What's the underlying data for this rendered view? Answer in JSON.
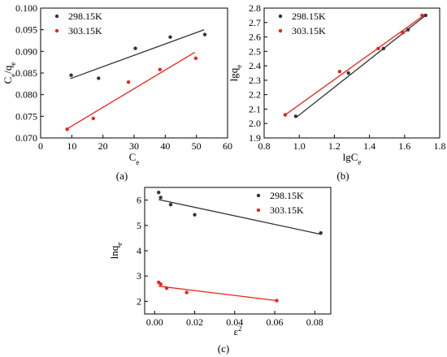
{
  "figure": {
    "captions": [
      "(a)",
      "(b)",
      "(c)"
    ]
  },
  "chart_data": [
    {
      "type": "scatter",
      "panel": "(a)",
      "xlabel": "Ce",
      "ylabel": "Ce/qe",
      "xlim": [
        0,
        60
      ],
      "ylim": [
        0.07,
        0.1
      ],
      "xticks": [
        "0",
        "10",
        "20",
        "30",
        "40",
        "50",
        "60"
      ],
      "yticks": [
        "0.070",
        "0.075",
        "0.080",
        "0.085",
        "0.090",
        "0.095",
        "0.100"
      ],
      "legend_position": "top-left",
      "series": [
        {
          "name": "298.15K",
          "color": "#333333",
          "x": [
            9.8,
            18.6,
            30.4,
            41.6,
            52.7
          ],
          "y": [
            0.0845,
            0.0838,
            0.0907,
            0.0933,
            0.0939
          ],
          "fit": [
            [
              9.5,
              0.0837
            ],
            [
              52.5,
              0.095
            ]
          ]
        },
        {
          "name": "303.15K",
          "color": "#e8231b",
          "x": [
            8.5,
            16.9,
            28.2,
            38.3,
            49.8
          ],
          "y": [
            0.072,
            0.0745,
            0.0829,
            0.0858,
            0.0884
          ],
          "fit": [
            [
              8.5,
              0.0721
            ],
            [
              49.5,
              0.0898
            ]
          ]
        }
      ]
    },
    {
      "type": "scatter",
      "panel": "(b)",
      "xlabel": "lgCe",
      "ylabel": "lgqe",
      "xlim": [
        0.8,
        1.8
      ],
      "ylim": [
        1.9,
        2.8
      ],
      "xticks": [
        "0.8",
        "1.0",
        "1.2",
        "1.4",
        "1.6",
        "1.8"
      ],
      "yticks": [
        "1.9",
        "2.0",
        "2.1",
        "2.2",
        "2.3",
        "2.4",
        "2.5",
        "2.6",
        "2.7",
        "2.8"
      ],
      "legend_position": "top-left",
      "series": [
        {
          "name": "298.15K",
          "color": "#333333",
          "x": [
            0.98,
            1.28,
            1.48,
            1.62,
            1.72
          ],
          "y": [
            2.05,
            2.35,
            2.52,
            2.65,
            2.75
          ],
          "fit": [
            [
              0.98,
              2.04
            ],
            [
              1.72,
              2.75
            ]
          ]
        },
        {
          "name": "303.15K",
          "color": "#e8231b",
          "x": [
            0.92,
            1.23,
            1.45,
            1.59,
            1.7
          ],
          "y": [
            2.06,
            2.36,
            2.52,
            2.63,
            2.75
          ],
          "fit": [
            [
              0.92,
              2.06
            ],
            [
              1.71,
              2.75
            ]
          ]
        }
      ]
    },
    {
      "type": "scatter",
      "panel": "(c)",
      "xlabel": "ε2",
      "ylabel": "lnqe",
      "xlim": [
        -0.005,
        0.088
      ],
      "ylim": [
        1.5,
        6.5
      ],
      "xticks": [
        "0.00",
        "0.02",
        "0.04",
        "0.06",
        "0.08"
      ],
      "yticks": [
        "2",
        "3",
        "4",
        "5",
        "6"
      ],
      "legend_position": "top-right",
      "series": [
        {
          "name": "298.15K",
          "color": "#333333",
          "x": [
            0.002,
            0.003,
            0.008,
            0.02,
            0.083
          ],
          "y": [
            6.3,
            6.1,
            5.82,
            5.42,
            4.7
          ],
          "fit": [
            [
              0.002,
              6.02
            ],
            [
              0.083,
              4.65
            ]
          ]
        },
        {
          "name": "303.15K",
          "color": "#e8231b",
          "x": [
            0.002,
            0.003,
            0.006,
            0.016,
            0.061
          ],
          "y": [
            2.75,
            2.68,
            2.52,
            2.35,
            2.03
          ],
          "fit": [
            [
              0.002,
              2.6
            ],
            [
              0.061,
              2.03
            ]
          ]
        }
      ]
    }
  ]
}
